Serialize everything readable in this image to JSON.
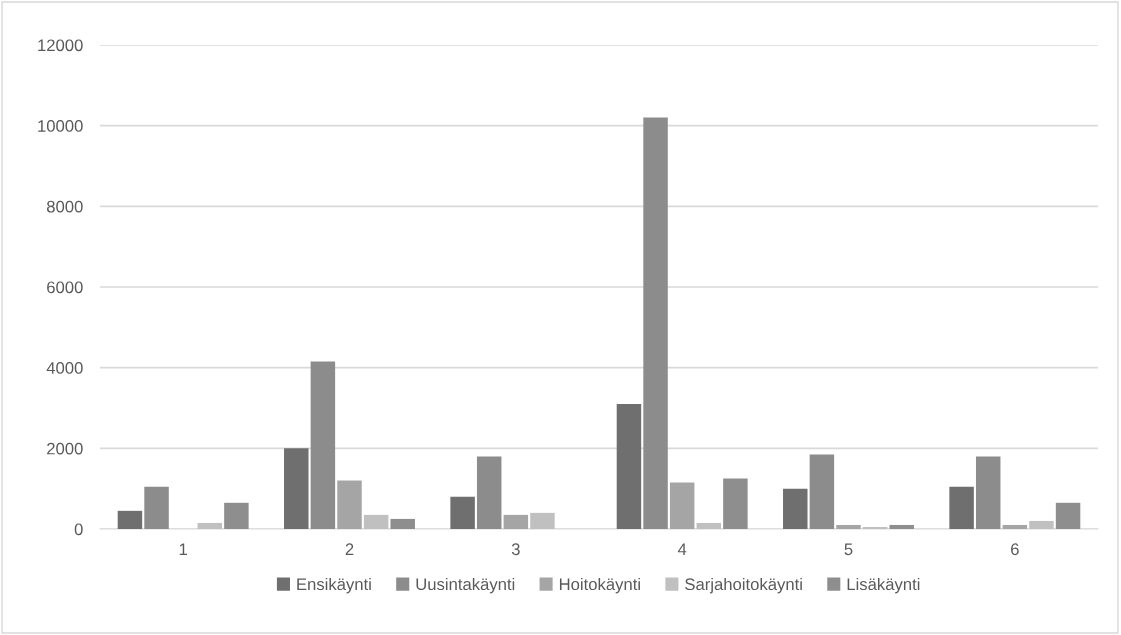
{
  "chart_data": {
    "type": "bar",
    "categories": [
      "1",
      "2",
      "3",
      "4",
      "5",
      "6"
    ],
    "series": [
      {
        "name": "Ensikäynti",
        "color": "#6f6f6f",
        "values": [
          450,
          2000,
          800,
          3100,
          1000,
          1050
        ]
      },
      {
        "name": "Uusintakäynti",
        "color": "#8c8c8c",
        "values": [
          1050,
          4150,
          1800,
          10200,
          1850,
          1800
        ]
      },
      {
        "name": "Hoitokäynti",
        "color": "#a5a5a5",
        "values": [
          0,
          1200,
          350,
          1150,
          100,
          100
        ]
      },
      {
        "name": "Sarjahoitokäynti",
        "color": "#c0c0c0",
        "values": [
          150,
          350,
          400,
          150,
          50,
          200
        ]
      },
      {
        "name": "Lisäkäynti",
        "color": "#8e8e8e",
        "values": [
          650,
          250,
          0,
          1250,
          100,
          650
        ]
      }
    ],
    "ylim": [
      0,
      12000
    ],
    "yticks": [
      0,
      2000,
      4000,
      6000,
      8000,
      10000,
      12000
    ],
    "grid": "y",
    "legend": "bottom"
  }
}
